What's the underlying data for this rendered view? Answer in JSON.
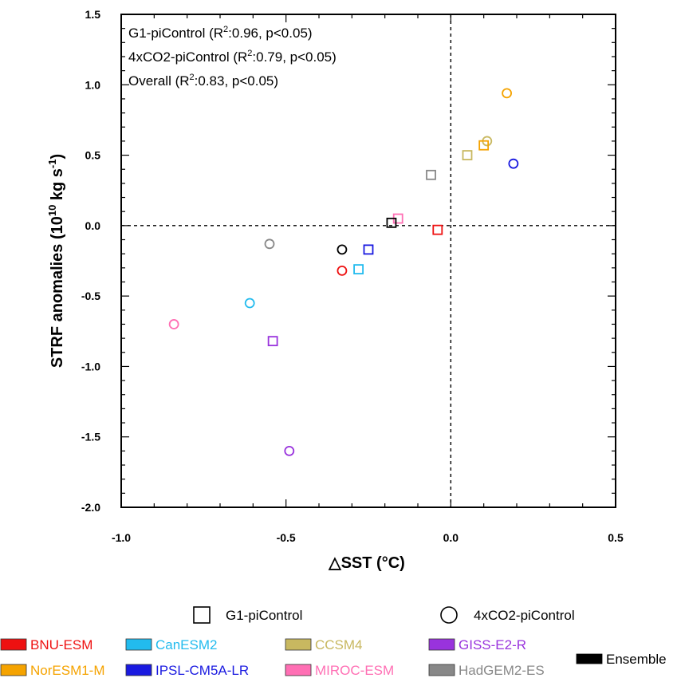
{
  "chart_data": {
    "type": "scatter",
    "xlabel": "SST (°C)",
    "xlabel_prefix": "△",
    "ylabel_main": "STRF anomalies (10",
    "ylabel_exp1": "10",
    "ylabel_units": " kg s",
    "ylabel_exp2": "-1",
    "ylabel_close": ")",
    "xlim": [
      -1.0,
      0.5
    ],
    "ylim": [
      -2.0,
      1.5
    ],
    "xticks": [
      -1.0,
      -0.5,
      0.0,
      0.5
    ],
    "xtick_labels": [
      "-1.0",
      "-0.5",
      "0.0",
      "0.5"
    ],
    "yticks": [
      -2.0,
      -1.5,
      -1.0,
      -0.5,
      0.0,
      0.5,
      1.0,
      1.5
    ],
    "ytick_labels": [
      "-2.0",
      "-1.5",
      "-1.0",
      "-0.5",
      "0.0",
      "0.5",
      "1.0",
      "1.5"
    ],
    "reference_lines": {
      "x": 0.0,
      "y": 0.0,
      "style": "dashed"
    },
    "stats": [
      {
        "pre": "G1-piControl (R",
        "sup": "2",
        "post": ":0.96, p<0.05)"
      },
      {
        "pre": "4xCO2-piControl (R",
        "sup": "2",
        "post": ":0.79, p<0.05)"
      },
      {
        "pre": "Overall (R",
        "sup": "2",
        "post": ":0.83, p<0.05)"
      }
    ],
    "marker_legend": [
      {
        "marker": "square",
        "label": "G1-piControl"
      },
      {
        "marker": "circle",
        "label": "4xCO2-piControl"
      }
    ],
    "models": [
      {
        "name": "BNU-ESM",
        "color": "#ee1111",
        "g1": [
          -0.04,
          -0.03
        ],
        "co2": [
          -0.33,
          -0.32
        ]
      },
      {
        "name": "CanESM2",
        "color": "#22bbee",
        "g1": [
          -0.28,
          -0.31
        ],
        "co2": [
          -0.61,
          -0.55
        ]
      },
      {
        "name": "CCSM4",
        "color": "#c8b860",
        "g1": [
          0.05,
          0.5
        ],
        "co2": [
          0.11,
          0.6
        ]
      },
      {
        "name": "GISS-E2-R",
        "color": "#9933dd",
        "g1": [
          -0.54,
          -0.82
        ],
        "co2": [
          -0.49,
          -1.6
        ]
      },
      {
        "name": "NorESM1-M",
        "color": "#f5a300",
        "g1": [
          0.1,
          0.57
        ],
        "co2": [
          0.17,
          0.94
        ]
      },
      {
        "name": "IPSL-CM5A-LR",
        "color": "#1a1ae0",
        "g1": [
          -0.25,
          -0.17
        ],
        "co2": [
          0.19,
          0.44
        ]
      },
      {
        "name": "MIROC-ESM",
        "color": "#ff6fb4",
        "g1": [
          -0.16,
          0.05
        ],
        "co2": [
          -0.84,
          -0.7
        ]
      },
      {
        "name": "HadGEM2-ES",
        "color": "#888888",
        "g1": [
          -0.06,
          0.36
        ],
        "co2": [
          -0.55,
          -0.13
        ]
      },
      {
        "name": "Ensemble",
        "color": "#000000",
        "g1": [
          -0.18,
          0.02
        ],
        "co2": [
          -0.33,
          -0.17
        ]
      }
    ]
  }
}
